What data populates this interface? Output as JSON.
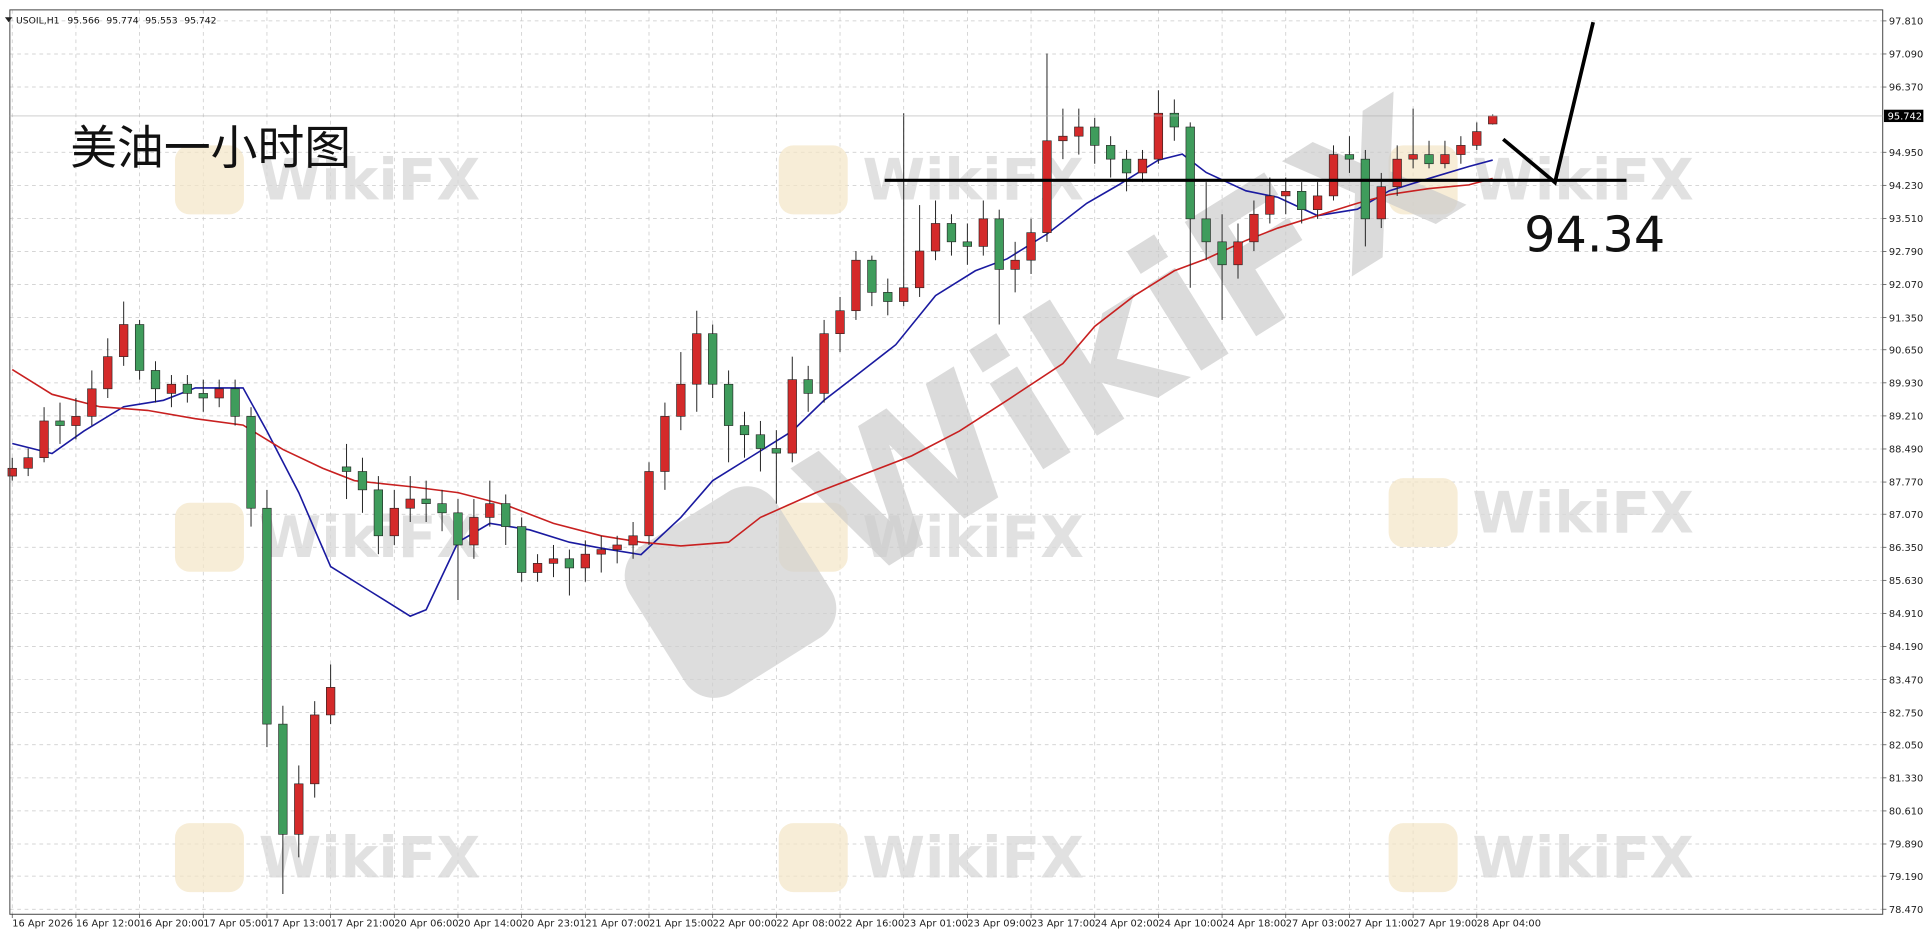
{
  "chart_data": {
    "type": "candlestick",
    "symbol": "USOIL,H1",
    "title": "美油一小时图",
    "watermark": "WikiFX",
    "level": 94.34,
    "grid": true,
    "up_color": "#d42a2a",
    "down_color": "#3f9c5c",
    "xlim": [
      -0.3,
      235
    ],
    "ylim": [
      78.36,
      98.05
    ],
    "yticks": [
      {
        "value": 97.81,
        "label": "97.810"
      },
      {
        "value": 97.09,
        "label": "97.090"
      },
      {
        "value": 96.37,
        "label": "96.370"
      },
      {
        "value": 94.95,
        "label": "94.950"
      },
      {
        "value": 94.23,
        "label": "94.230"
      },
      {
        "value": 93.51,
        "label": "93.510"
      },
      {
        "value": 92.79,
        "label": "92.790"
      },
      {
        "value": 92.07,
        "label": "92.070"
      },
      {
        "value": 91.35,
        "label": "91.350"
      },
      {
        "value": 90.65,
        "label": "90.650"
      },
      {
        "value": 89.93,
        "label": "89.930"
      },
      {
        "value": 89.21,
        "label": "89.210"
      },
      {
        "value": 88.49,
        "label": "88.490"
      },
      {
        "value": 87.77,
        "label": "87.770"
      },
      {
        "value": 87.07,
        "label": "87.070"
      },
      {
        "value": 86.35,
        "label": "86.350"
      },
      {
        "value": 85.63,
        "label": "85.630"
      },
      {
        "value": 84.91,
        "label": "84.910"
      },
      {
        "value": 84.19,
        "label": "84.190"
      },
      {
        "value": 83.47,
        "label": "83.470"
      },
      {
        "value": 82.75,
        "label": "82.750"
      },
      {
        "value": 82.05,
        "label": "82.050"
      },
      {
        "value": 81.33,
        "label": "81.330"
      },
      {
        "value": 80.61,
        "label": "80.610"
      },
      {
        "value": 79.89,
        "label": "79.890"
      },
      {
        "value": 79.19,
        "label": "79.190"
      },
      {
        "value": 78.47,
        "label": "78.470"
      }
    ],
    "xticks": [
      {
        "value": 0,
        "label": "16 Apr 2026"
      },
      {
        "value": 8,
        "label": "16 Apr 12:00"
      },
      {
        "value": 16,
        "label": "16 Apr 20:00"
      },
      {
        "value": 24,
        "label": "17 Apr 05:00"
      },
      {
        "value": 32,
        "label": "17 Apr 13:00"
      },
      {
        "value": 40,
        "label": "17 Apr 21:00"
      },
      {
        "value": 48,
        "label": "20 Apr 06:00"
      },
      {
        "value": 56,
        "label": "20 Apr 14:00"
      },
      {
        "value": 64,
        "label": "20 Apr 23:01"
      },
      {
        "value": 72,
        "label": "21 Apr 07:00"
      },
      {
        "value": 80,
        "label": "21 Apr 15:00"
      },
      {
        "value": 88,
        "label": "22 Apr 00:00"
      },
      {
        "value": 96,
        "label": "22 Apr 08:00"
      },
      {
        "value": 104,
        "label": "22 Apr 16:00"
      },
      {
        "value": 112,
        "label": "23 Apr 01:00"
      },
      {
        "value": 120,
        "label": "23 Apr 09:00"
      },
      {
        "value": 128,
        "label": "23 Apr 17:00"
      },
      {
        "value": 136,
        "label": "24 Apr 02:00"
      },
      {
        "value": 144,
        "label": "24 Apr 10:00"
      },
      {
        "value": 152,
        "label": "24 Apr 18:00"
      },
      {
        "value": 160,
        "label": "27 Apr 03:00"
      },
      {
        "value": 168,
        "label": "27 Apr 11:00"
      },
      {
        "value": 176,
        "label": "27 Apr 19:00"
      },
      {
        "value": 184,
        "label": "28 Apr 04:00"
      }
    ],
    "x": [
      0,
      2,
      4,
      6,
      8,
      10,
      12,
      14,
      16,
      18,
      20,
      22,
      24,
      26,
      28,
      30,
      32,
      34,
      36,
      38,
      40,
      42,
      44,
      46,
      48,
      50,
      52,
      54,
      56,
      58,
      60,
      62,
      64,
      66,
      68,
      70,
      72,
      74,
      76,
      78,
      80,
      82,
      84,
      86,
      88,
      90,
      92,
      94,
      96,
      98,
      100,
      102,
      104,
      106,
      108,
      110,
      112,
      114,
      116,
      118,
      120,
      122,
      124,
      126,
      128,
      130,
      132,
      134,
      136,
      138,
      140,
      142,
      144,
      146,
      148,
      150,
      152,
      154,
      156,
      158,
      160,
      162,
      164,
      166,
      168,
      170,
      172,
      174,
      176,
      178,
      180,
      182,
      184,
      186
    ],
    "open": [
      87.9,
      88.07,
      88.3,
      89.1,
      89.0,
      89.2,
      89.8,
      90.5,
      91.2,
      90.2,
      89.7,
      89.9,
      89.7,
      89.6,
      89.8,
      89.2,
      87.2,
      82.5,
      80.1,
      81.2,
      82.7,
      88.1,
      88.0,
      87.6,
      86.6,
      87.2,
      87.4,
      87.3,
      87.1,
      86.4,
      87.0,
      87.3,
      86.8,
      85.8,
      86.0,
      86.1,
      85.9,
      86.2,
      86.3,
      86.4,
      86.6,
      88.0,
      89.2,
      89.9,
      91.0,
      89.9,
      89.0,
      88.8,
      88.5,
      88.4,
      90.0,
      89.7,
      91.0,
      91.5,
      92.6,
      91.9,
      91.7,
      92.0,
      92.8,
      93.4,
      93.0,
      92.9,
      93.5,
      92.4,
      92.6,
      93.2,
      95.2,
      95.3,
      95.5,
      95.1,
      94.8,
      94.5,
      94.8,
      95.8,
      95.5,
      93.5,
      93.0,
      92.5,
      93.0,
      93.6,
      94.0,
      94.1,
      93.7,
      94.0,
      94.9,
      94.8,
      93.5,
      94.2,
      94.8,
      94.9,
      94.7,
      94.9,
      95.1,
      95.566
    ],
    "high": [
      88.3,
      88.5,
      89.4,
      89.5,
      89.6,
      90.2,
      90.9,
      91.7,
      91.3,
      90.4,
      90.1,
      90.1,
      90.0,
      90.0,
      90.0,
      89.4,
      87.6,
      82.9,
      81.6,
      83.0,
      83.8,
      88.6,
      88.3,
      87.9,
      87.6,
      87.9,
      87.8,
      87.6,
      87.4,
      87.4,
      87.8,
      87.5,
      87.0,
      86.2,
      86.4,
      86.3,
      86.5,
      86.6,
      86.6,
      86.9,
      88.2,
      89.5,
      90.6,
      91.5,
      91.2,
      90.2,
      89.3,
      89.1,
      88.9,
      90.5,
      90.3,
      91.3,
      91.8,
      92.8,
      92.7,
      92.2,
      95.8,
      93.8,
      93.9,
      93.6,
      93.4,
      93.9,
      93.7,
      93.0,
      93.5,
      97.1,
      95.9,
      95.9,
      95.7,
      95.3,
      95.0,
      95.0,
      96.3,
      96.1,
      95.6,
      94.3,
      93.6,
      93.4,
      93.9,
      94.4,
      94.4,
      94.3,
      94.3,
      95.1,
      95.3,
      95.0,
      94.5,
      95.1,
      95.9,
      95.2,
      95.2,
      95.3,
      95.6,
      95.774
    ],
    "low": [
      87.8,
      87.9,
      88.2,
      88.6,
      88.7,
      89.0,
      89.6,
      90.3,
      90.0,
      89.5,
      89.4,
      89.5,
      89.3,
      89.4,
      89.0,
      86.8,
      82.0,
      78.8,
      79.6,
      80.9,
      82.5,
      87.4,
      87.1,
      86.2,
      86.4,
      86.9,
      86.9,
      86.7,
      85.2,
      86.1,
      86.8,
      86.4,
      85.6,
      85.6,
      85.7,
      85.3,
      85.6,
      85.8,
      86.0,
      86.1,
      86.4,
      87.6,
      88.9,
      89.3,
      89.6,
      88.2,
      88.3,
      88.0,
      87.3,
      88.2,
      89.3,
      89.5,
      90.6,
      91.3,
      91.6,
      91.4,
      91.6,
      91.8,
      92.6,
      92.7,
      92.5,
      92.7,
      91.2,
      91.9,
      92.3,
      93.0,
      94.8,
      94.9,
      94.7,
      94.4,
      94.1,
      94.3,
      94.7,
      95.2,
      92.0,
      92.6,
      91.3,
      92.2,
      92.8,
      93.4,
      93.6,
      93.4,
      93.5,
      93.9,
      94.5,
      92.9,
      93.3,
      94.0,
      94.6,
      94.6,
      94.6,
      94.7,
      95.0,
      95.553
    ],
    "close": [
      88.07,
      88.3,
      89.1,
      89.0,
      89.2,
      89.8,
      90.5,
      91.2,
      90.2,
      89.8,
      89.9,
      89.7,
      89.6,
      89.8,
      89.2,
      87.2,
      82.5,
      80.1,
      81.2,
      82.7,
      83.3,
      88.0,
      87.6,
      86.6,
      87.2,
      87.4,
      87.3,
      87.1,
      86.4,
      87.0,
      87.3,
      86.8,
      85.8,
      86.0,
      86.1,
      85.9,
      86.2,
      86.3,
      86.4,
      86.6,
      88.0,
      89.2,
      89.9,
      91.0,
      89.9,
      89.0,
      88.8,
      88.5,
      88.4,
      90.0,
      89.7,
      91.0,
      91.5,
      92.6,
      91.9,
      91.7,
      92.0,
      92.8,
      93.4,
      93.0,
      92.9,
      93.5,
      92.4,
      92.6,
      93.2,
      95.2,
      95.3,
      95.5,
      95.1,
      94.8,
      94.5,
      94.8,
      95.8,
      95.5,
      93.5,
      93.0,
      92.5,
      93.0,
      93.6,
      94.0,
      94.1,
      93.7,
      94.0,
      94.9,
      94.8,
      93.5,
      94.2,
      94.8,
      94.9,
      94.7,
      94.9,
      95.1,
      95.4,
      95.742
    ],
    "lines": [
      {
        "color": "#1a1aa0",
        "x": [
          0,
          5,
          9,
          14,
          19,
          23,
          29,
          32,
          36,
          40,
          45,
          50,
          52,
          56,
          60,
          65,
          70,
          74,
          79,
          84,
          88,
          93,
          98,
          102,
          107,
          111,
          116,
          121,
          125,
          130,
          135,
          139,
          144,
          147,
          150,
          155,
          159,
          164,
          169,
          173,
          178,
          183,
          186
        ],
        "values": [
          88.61,
          88.39,
          88.88,
          89.41,
          89.55,
          89.82,
          89.82,
          88.88,
          87.54,
          85.93,
          85.39,
          84.85,
          84.99,
          86.46,
          86.87,
          86.73,
          86.46,
          86.33,
          86.19,
          87.0,
          87.8,
          88.34,
          88.88,
          89.55,
          90.22,
          90.76,
          91.83,
          92.37,
          92.63,
          93.17,
          93.84,
          94.24,
          94.78,
          94.91,
          94.51,
          94.11,
          93.97,
          93.57,
          93.71,
          94.11,
          94.38,
          94.64,
          94.78
        ]
      },
      {
        "color": "#c82020",
        "x": [
          0,
          5,
          11,
          17,
          23,
          29,
          34,
          39,
          43,
          50,
          56,
          62,
          68,
          74,
          79,
          84,
          90,
          94,
          101,
          107,
          113,
          119,
          125,
          132,
          136,
          141,
          146,
          150,
          155,
          159,
          164,
          169,
          173,
          178,
          183,
          186
        ],
        "values": [
          90.22,
          89.68,
          89.41,
          89.33,
          89.15,
          89.01,
          88.48,
          88.07,
          87.8,
          87.67,
          87.54,
          87.27,
          86.87,
          86.6,
          86.46,
          86.38,
          86.46,
          87.0,
          87.54,
          87.94,
          88.34,
          88.88,
          89.55,
          90.35,
          91.16,
          91.83,
          92.37,
          92.63,
          93.03,
          93.3,
          93.57,
          93.84,
          94.03,
          94.16,
          94.24,
          94.38
        ]
      }
    ]
  }
}
